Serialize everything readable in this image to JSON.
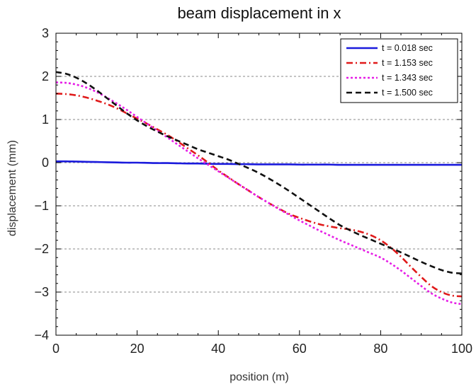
{
  "chart_data": {
    "type": "line",
    "title": "beam displacement in x",
    "xlabel": "position (m)",
    "ylabel": "displacement (mm)",
    "xlim": [
      0,
      100
    ],
    "ylim": [
      -4,
      3
    ],
    "xticks": [
      0,
      20,
      40,
      60,
      80,
      100
    ],
    "yticks": [
      -4,
      -3,
      -2,
      -1,
      0,
      1,
      2,
      3
    ],
    "xtick_labels": [
      "0",
      "20",
      "40",
      "60",
      "80",
      "100"
    ],
    "ytick_labels": [
      "−4",
      "−3",
      "−2",
      "−1",
      "0",
      "1",
      "2",
      "3"
    ],
    "grid": "horizontal dashed",
    "legend_position": "top-right",
    "x": [
      0,
      2.5,
      5,
      7.5,
      10,
      12.5,
      15,
      17.5,
      20,
      22.5,
      25,
      27.5,
      30,
      32.5,
      35,
      37.5,
      40,
      42.5,
      45,
      47.5,
      50,
      52.5,
      55,
      57.5,
      60,
      62.5,
      65,
      67.5,
      70,
      72.5,
      75,
      77.5,
      80,
      82.5,
      85,
      87.5,
      90,
      92.5,
      95,
      97.5,
      100
    ],
    "series": [
      {
        "name": "t = 0.018 sec",
        "color": "#1a1adc",
        "style": "solid",
        "values": [
          0.03,
          0.03,
          0.025,
          0.02,
          0.015,
          0.01,
          0.005,
          0.0,
          0.0,
          -0.005,
          -0.01,
          -0.01,
          -0.015,
          -0.02,
          -0.02,
          -0.025,
          -0.03,
          -0.03,
          -0.035,
          -0.035,
          -0.04,
          -0.04,
          -0.04,
          -0.04,
          -0.045,
          -0.045,
          -0.045,
          -0.045,
          -0.05,
          -0.05,
          -0.05,
          -0.05,
          -0.05,
          -0.05,
          -0.05,
          -0.05,
          -0.05,
          -0.05,
          -0.05,
          -0.05,
          -0.05
        ]
      },
      {
        "name": "t = 1.153 sec",
        "color": "#e01a1a",
        "style": "dashdot",
        "values": [
          1.6,
          1.59,
          1.56,
          1.51,
          1.44,
          1.36,
          1.26,
          1.14,
          1.02,
          0.9,
          0.77,
          0.64,
          0.49,
          0.33,
          0.17,
          0.0,
          -0.18,
          -0.34,
          -0.5,
          -0.65,
          -0.8,
          -0.94,
          -1.07,
          -1.19,
          -1.28,
          -1.36,
          -1.43,
          -1.48,
          -1.52,
          -1.55,
          -1.6,
          -1.68,
          -1.8,
          -1.97,
          -2.18,
          -2.42,
          -2.65,
          -2.86,
          -3.0,
          -3.08,
          -3.1
        ]
      },
      {
        "name": "t = 1.343 sec",
        "color": "#e61ee6",
        "style": "dotted",
        "values": [
          1.86,
          1.85,
          1.81,
          1.74,
          1.64,
          1.51,
          1.37,
          1.22,
          1.06,
          0.9,
          0.74,
          0.58,
          0.42,
          0.26,
          0.1,
          -0.05,
          -0.2,
          -0.35,
          -0.5,
          -0.65,
          -0.8,
          -0.94,
          -1.08,
          -1.21,
          -1.34,
          -1.46,
          -1.58,
          -1.69,
          -1.8,
          -1.9,
          -2.0,
          -2.1,
          -2.2,
          -2.34,
          -2.5,
          -2.68,
          -2.86,
          -3.03,
          -3.15,
          -3.24,
          -3.28
        ]
      },
      {
        "name": "t = 1.500 sec",
        "color": "#111111",
        "style": "dashed",
        "values": [
          2.1,
          2.06,
          1.97,
          1.84,
          1.68,
          1.5,
          1.32,
          1.14,
          0.98,
          0.84,
          0.72,
          0.61,
          0.51,
          0.41,
          0.31,
          0.23,
          0.15,
          0.07,
          -0.03,
          -0.13,
          -0.24,
          -0.37,
          -0.51,
          -0.66,
          -0.82,
          -0.98,
          -1.14,
          -1.3,
          -1.45,
          -1.57,
          -1.68,
          -1.78,
          -1.88,
          -1.98,
          -2.08,
          -2.19,
          -2.3,
          -2.4,
          -2.49,
          -2.55,
          -2.57
        ]
      }
    ]
  }
}
